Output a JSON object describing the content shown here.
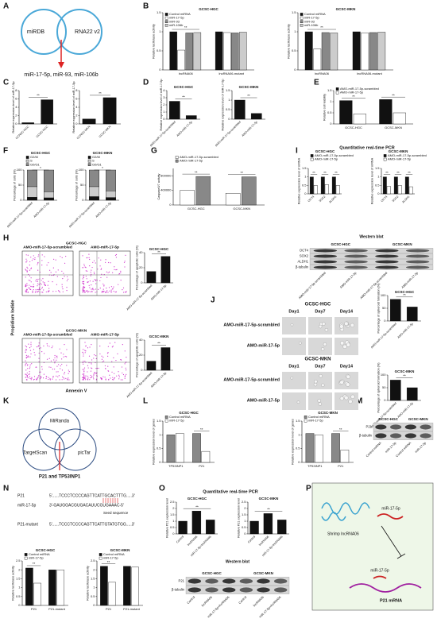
{
  "panel_letters": [
    "A",
    "B",
    "C",
    "D",
    "E",
    "F",
    "G",
    "I",
    "H",
    "J",
    "K",
    "L",
    "M",
    "N",
    "O",
    "P"
  ],
  "venn_a": {
    "left": "miRDB",
    "right": "RNA22 v2",
    "result": "miR-17-5p, miR-93, miR-106b"
  },
  "headers": {
    "i": "Quantitative real-time PCR",
    "o": "Quantitative real-time PCR"
  },
  "chart_data": [
    {
      "type": "bar",
      "title": "GCSC-HGC",
      "ylabel": "Relative luciferase activity",
      "categories": [
        "lncRNA06",
        "lncRNA06-mutant"
      ],
      "series": [
        {
          "name": "Control miRNA",
          "color": "#111111",
          "values": [
            1.0,
            1.0
          ]
        },
        {
          "name": "miR-17-5p",
          "color": "#ffffff",
          "values": [
            0.52,
            0.98
          ]
        },
        {
          "name": "miR-93",
          "color": "#888888",
          "values": [
            0.97,
            0.97
          ]
        },
        {
          "name": "miR-106b",
          "color": "#cccccc",
          "values": [
            0.98,
            0.99
          ]
        }
      ],
      "ylim": [
        0,
        1.5
      ],
      "yticks": [
        0,
        0.5,
        1,
        1.5
      ],
      "annotations": [
        "**",
        null
      ]
    },
    {
      "type": "bar",
      "title": "GCSC-MKN",
      "ylabel": "Relative luciferase activity",
      "categories": [
        "lncRNA06",
        "lncRNA06-mutant"
      ],
      "series": [
        {
          "name": "Control miRNA",
          "color": "#111111",
          "values": [
            1.0,
            1.0
          ]
        },
        {
          "name": "miR-17-5p",
          "color": "#ffffff",
          "values": [
            0.55,
            0.97
          ]
        },
        {
          "name": "miR-93",
          "color": "#888888",
          "values": [
            0.98,
            0.98
          ]
        },
        {
          "name": "miR-106b",
          "color": "#cccccc",
          "values": [
            0.97,
            0.99
          ]
        }
      ],
      "ylim": [
        0,
        1.5
      ],
      "yticks": [
        0,
        0.5,
        1,
        1.5
      ],
      "annotations": [
        "**",
        null
      ]
    },
    {
      "type": "bar",
      "ylabel": "Relative expression level of miR-17-5p",
      "categories": [
        "GCNSC-HGC",
        "GCSC-HGC"
      ],
      "values": [
        0.3,
        5.8
      ],
      "color": "#111111",
      "ylim": [
        0,
        8
      ],
      "yticks": [
        0,
        2,
        4,
        6,
        8
      ],
      "rotate_labels": true,
      "annotations": [
        "**"
      ]
    },
    {
      "type": "bar",
      "ylabel": "Relative expression level of miR-17-5p",
      "categories": [
        "GCNSC-MKN",
        "GCSC-MKN"
      ],
      "values": [
        1.2,
        6.3
      ],
      "color": "#111111",
      "ylim": [
        0,
        8
      ],
      "yticks": [
        0,
        2,
        4,
        6,
        8
      ],
      "rotate_labels": true,
      "annotations": [
        "**"
      ]
    },
    {
      "type": "bar",
      "title": "GCSC-HGC",
      "ylabel": "Relative expression level of miR-17-5p",
      "categories": [
        "AMO-miR-17-5p-scrambled",
        "AMO-miR-17-5p"
      ],
      "values": [
        2.5,
        0.5
      ],
      "color": "#111111",
      "ylim": [
        0,
        4
      ],
      "yticks": [
        0,
        1,
        2,
        3,
        4
      ],
      "rotate_labels": true,
      "annotations": [
        "**"
      ]
    },
    {
      "type": "bar",
      "title": "GCSC-MKN",
      "ylabel": "Relative expression level of miR-17-5p",
      "categories": [
        "AMO-miR-17-5p-scrambled",
        "AMO-miR-17-5p"
      ],
      "values": [
        1.0,
        0.3
      ],
      "color": "#111111",
      "ylim": [
        0,
        1.5
      ],
      "yticks": [
        0,
        0.5,
        1,
        1.5
      ],
      "rotate_labels": true,
      "annotations": [
        "**"
      ]
    },
    {
      "type": "bar",
      "ylabel": "Relative cell viability",
      "categories": [
        "GCSC-HGC",
        "GCSC-MKN"
      ],
      "series": [
        {
          "name": "AMO-miR-17-5p-scrambled",
          "color": "#111111",
          "values": [
            1.05,
            1.1
          ]
        },
        {
          "name": "AMO-miR-17-5p",
          "color": "#ffffff",
          "values": [
            0.45,
            0.5
          ]
        }
      ],
      "ylim": [
        0,
        1.5
      ],
      "yticks": [
        0,
        0.5,
        1,
        1.5
      ],
      "annotations": [
        "**",
        "**"
      ]
    },
    {
      "type": "stacked_bar",
      "title": "GCSC-HGC",
      "ylabel": "Percentage of cells (%)",
      "categories": [
        "AMO-miR-17-5p-scrambled",
        "AMO-miR-17-5p"
      ],
      "series": [
        {
          "name": "G2/M",
          "color": "#111111",
          "values": [
            10,
            8
          ]
        },
        {
          "name": "S",
          "color": "#cccccc",
          "values": [
            35,
            20
          ]
        },
        {
          "name": "G0/G1",
          "color": "#888888",
          "values": [
            55,
            72
          ]
        }
      ],
      "ylim": [
        0,
        100
      ],
      "yticks": [
        0,
        50,
        100
      ],
      "rotate_labels": true,
      "annotations": [
        "*"
      ]
    },
    {
      "type": "stacked_bar",
      "title": "GCSC-MKN",
      "ylabel": "Percentage of cells (%)",
      "categories": [
        "AMO-miR-17-5p-scrambled",
        "AMO-miR-17-5p"
      ],
      "series": [
        {
          "name": "G2/M",
          "color": "#111111",
          "values": [
            12,
            9
          ]
        },
        {
          "name": "S",
          "color": "#cccccc",
          "values": [
            33,
            22
          ]
        },
        {
          "name": "G0/G1",
          "color": "#888888",
          "values": [
            55,
            69
          ]
        }
      ],
      "ylim": [
        0,
        100
      ],
      "yticks": [
        0,
        50,
        100
      ],
      "rotate_labels": true,
      "annotations": [
        "*"
      ]
    },
    {
      "type": "bar",
      "ylabel": "Caspase3/7 activity",
      "categories": [
        "GCSC-HGC",
        "GCSC-MKN"
      ],
      "series": [
        {
          "name": "AMO-miR-17-5p-scrambled",
          "color": "#ffffff",
          "values": [
            400000,
            320000
          ]
        },
        {
          "name": "AMO-miR-17-5p",
          "color": "#888888",
          "values": [
            780000,
            770000
          ]
        }
      ],
      "ylim": [
        0,
        1000000
      ],
      "yticks": [
        0,
        400000,
        800000
      ],
      "annotations": [
        "**",
        "**"
      ]
    },
    {
      "type": "bar",
      "title": "GCSC-HGC",
      "ylabel": "Relative expression level of mRNA",
      "categories": [
        "OCT4",
        "SOX2",
        "ALDH1"
      ],
      "series": [
        {
          "name": "AMO-miR-17-5p-scrambled",
          "color": "#111111",
          "values": [
            1.0,
            1.0,
            1.0
          ]
        },
        {
          "name": "AMO-miR-17-5p",
          "color": "#ffffff",
          "values": [
            0.5,
            0.55,
            0.5
          ]
        }
      ],
      "ylim": [
        0,
        1.5
      ],
      "yticks": [
        0,
        0.5,
        1,
        1.5
      ],
      "rotate_labels": true,
      "annotations": [
        "**",
        "**",
        "**"
      ]
    },
    {
      "type": "bar",
      "title": "GCSC-MKN",
      "ylabel": "Relative expression level of mRNA",
      "categories": [
        "OCT4",
        "SOX2",
        "ALDH1"
      ],
      "series": [
        {
          "name": "AMO-miR-17-5p-scrambled",
          "color": "#111111",
          "values": [
            1.0,
            1.0,
            1.0
          ]
        },
        {
          "name": "AMO-miR-17-5p",
          "color": "#ffffff",
          "values": [
            0.45,
            0.5,
            0.42
          ]
        }
      ],
      "ylim": [
        0,
        1.5
      ],
      "yticks": [
        0,
        0.5,
        1,
        1.5
      ],
      "rotate_labels": true,
      "annotations": [
        "**",
        "**",
        "**"
      ]
    },
    {
      "type": "bar",
      "title": "GCSC-HGC",
      "ylabel": "Percentage of apoptotic cells (%)",
      "categories": [
        "AMO-miR-17-5p-scrambled",
        "AMO-miR-17-5p"
      ],
      "values": [
        15,
        35
      ],
      "color": "#111111",
      "ylim": [
        0,
        40
      ],
      "yticks": [
        0,
        20,
        40
      ],
      "rotate_labels": true,
      "annotations": [
        "**"
      ]
    },
    {
      "type": "bar",
      "title": "GCSC-MKN",
      "ylabel": "Percentage of apoptotic cells (%)",
      "categories": [
        "AMO-miR-17-5p-scrambled",
        "AMO-miR-17-5p"
      ],
      "values": [
        12,
        30
      ],
      "color": "#111111",
      "ylim": [
        0,
        40
      ],
      "yticks": [
        0,
        20,
        40
      ],
      "rotate_labels": true,
      "annotations": [
        "**"
      ]
    },
    {
      "type": "bar",
      "title": "GCSC-HGC",
      "ylabel": "Percentage of spheroid formation (%)",
      "categories": [
        "AMO-miR-17-5p-scrambled",
        "AMO-miR-17-5p"
      ],
      "values": [
        85,
        55
      ],
      "color": "#111111",
      "ylim": [
        0,
        100
      ],
      "yticks": [
        0,
        50,
        100
      ],
      "rotate_labels": true,
      "annotations": [
        "**"
      ]
    },
    {
      "type": "bar",
      "title": "GCSC-MKN",
      "ylabel": "Percentage of spheroid formation (%)",
      "categories": [
        "AMO-miR-17-5p-scrambled",
        "AMO-miR-17-5p"
      ],
      "values": [
        80,
        50
      ],
      "color": "#111111",
      "ylim": [
        0,
        100
      ],
      "yticks": [
        0,
        50,
        100
      ],
      "rotate_labels": true,
      "annotations": [
        "**"
      ]
    },
    {
      "type": "bar",
      "title": "GCSC-HGC",
      "ylabel": "Relative expression level of genes",
      "categories": [
        "TP53INP1",
        "P21"
      ],
      "series": [
        {
          "name": "Control miRNA",
          "color": "#888888",
          "values": [
            1.0,
            1.05
          ]
        },
        {
          "name": "miR-17-5p",
          "color": "#ffffff",
          "values": [
            1.05,
            0.4
          ]
        }
      ],
      "ylim": [
        0,
        1.5
      ],
      "yticks": [
        0,
        0.5,
        1,
        1.5
      ],
      "annotations": [
        null,
        "**"
      ]
    },
    {
      "type": "bar",
      "title": "GCSC-MKN",
      "ylabel": "Relative expression level of genes",
      "categories": [
        "TP53INP1",
        "P21"
      ],
      "series": [
        {
          "name": "Control miRNA",
          "color": "#888888",
          "values": [
            1.05,
            1.05
          ]
        },
        {
          "name": "miR-17-5p",
          "color": "#ffffff",
          "values": [
            1.0,
            0.45
          ]
        }
      ],
      "ylim": [
        0,
        1.5
      ],
      "yticks": [
        0,
        0.5,
        1,
        1.5
      ],
      "annotations": [
        null,
        "**"
      ]
    },
    {
      "type": "bar",
      "title": "GCSC-HGC",
      "ylabel": "Relative luciferase activity",
      "categories": [
        "P21",
        "P21-mutant"
      ],
      "series": [
        {
          "name": "Control miRNA",
          "color": "#111111",
          "values": [
            2.1,
            2.0
          ]
        },
        {
          "name": "miR-17-5p",
          "color": "#ffffff",
          "values": [
            1.25,
            2.0
          ]
        }
      ],
      "ylim": [
        0,
        2.5
      ],
      "yticks": [
        0,
        0.5,
        1,
        1.5,
        2,
        2.5
      ],
      "annotations": [
        "**",
        null
      ]
    },
    {
      "type": "bar",
      "title": "GCSC-MKN",
      "ylabel": "Relative luciferase activity",
      "categories": [
        "P21",
        "P21-mutant"
      ],
      "series": [
        {
          "name": "Control miRNA",
          "color": "#111111",
          "values": [
            2.2,
            2.2
          ]
        },
        {
          "name": "miR-17-5p",
          "color": "#ffffff",
          "values": [
            1.3,
            2.15
          ]
        }
      ],
      "ylim": [
        0,
        2.5
      ],
      "yticks": [
        0,
        0.5,
        1,
        1.5,
        2,
        2.5
      ],
      "annotations": [
        "**",
        null
      ]
    },
    {
      "type": "bar",
      "title": "GCSC-HGC",
      "ylabel": "Relative P21 expression level",
      "categories": [
        "Control",
        "lncRNA06",
        "miR-17-5p+lncRNA06"
      ],
      "values": [
        1.0,
        1.8,
        1.1
      ],
      "color": "#111111",
      "ylim": [
        0,
        2.5
      ],
      "yticks": [
        0,
        0.5,
        1,
        1.5,
        2,
        2.5
      ],
      "rotate_labels": true,
      "annotations": [
        "**"
      ]
    },
    {
      "type": "bar",
      "title": "GCSC-MKN",
      "ylabel": "Relative P21 expression level",
      "categories": [
        "Control",
        "lncRNA06",
        "miR-17-5p+lncRNA06"
      ],
      "values": [
        1.0,
        1.6,
        1.1
      ],
      "color": "#111111",
      "ylim": [
        0,
        2.5
      ],
      "yticks": [
        0,
        0.5,
        1,
        1.5,
        2,
        2.5
      ],
      "rotate_labels": true,
      "annotations": [
        "**"
      ]
    }
  ],
  "flow_h": {
    "conditions": [
      "AMO-miR-17-5p-scrambled",
      "AMO-miR-17-5p",
      "AMO-miR-17-5p-scrambled",
      "AMO-miR-17-5p"
    ],
    "cell_lines": [
      "GCSC-HGC",
      "GCSC-MKN"
    ],
    "ylabel": "Propidium Iodide",
    "xlabel": "Annexin V"
  },
  "spheres_j": {
    "cell_lines": [
      "GCSC-HGC",
      "GCSC-MKN"
    ],
    "days_hgc": [
      "Day1",
      "Day7",
      "Day14"
    ],
    "days_mkn": [
      "Day1",
      "Day7",
      "Day14"
    ],
    "rows": [
      "AMO-miR-17-5p-scrambled",
      "AMO-miR-17-5p",
      "AMO-miR-17-5p-scrambled",
      "AMO-miR-17-5p"
    ]
  },
  "venn_k": {
    "top": "MiRanda",
    "left": "TargetScan",
    "right": "picTar",
    "result": "P21 and TP53INP1"
  },
  "blots": [
    {
      "title": "Western blot",
      "groups": [
        "GCSC-HGC",
        "GCSC-MKN"
      ],
      "rows": [
        "OCT4",
        "SOX2",
        "ALDH1",
        "β-tubulin"
      ],
      "lanes": [
        "AMO-miR-17-5p-scrambled",
        "AMO-miR-17-5p",
        "AMO-miR-17-5p-scrambled",
        "AMO-miR-17-5p"
      ]
    },
    {
      "groups": [
        "GCSC-HGC",
        "GCSC-MKN"
      ],
      "rows": [
        "P21",
        "β-tubulin"
      ],
      "lanes": [
        "Control miRNA",
        "miR-17-5p",
        "Control miRNA",
        "miR-17-5p"
      ]
    },
    {
      "title": "Western blot",
      "groups": [
        "GCSC-HGC",
        "GCSC-MKN"
      ],
      "rows": [
        "P21",
        "β-tubulin"
      ],
      "lanes": [
        "Control",
        "lncRNA06",
        "miR-17-5p+lncRNA06",
        "Control",
        "lncRNA06",
        "miR-17-5p+lncRNA06"
      ]
    }
  ],
  "sequence_n": {
    "names": [
      "P21",
      "miR-17-5p",
      "P21-mutant"
    ],
    "sequences": [
      "5'......TCCCTCCCCAGTTCATTGCACTTTG.....3'",
      "3'-GAUGGACGUGACAUUCGUGAAAC-5'",
      "5'......TCCCTCCCCAGTTCATTGTATGTGG.....3'"
    ],
    "seed": "Seed sequence"
  },
  "diagram_p": {
    "lncrna": "Shrimp lncRNA06",
    "mirna_top": "miR-17-5p",
    "mirna_bottom": "miR-17-5p",
    "target": "P21 mRNA"
  }
}
